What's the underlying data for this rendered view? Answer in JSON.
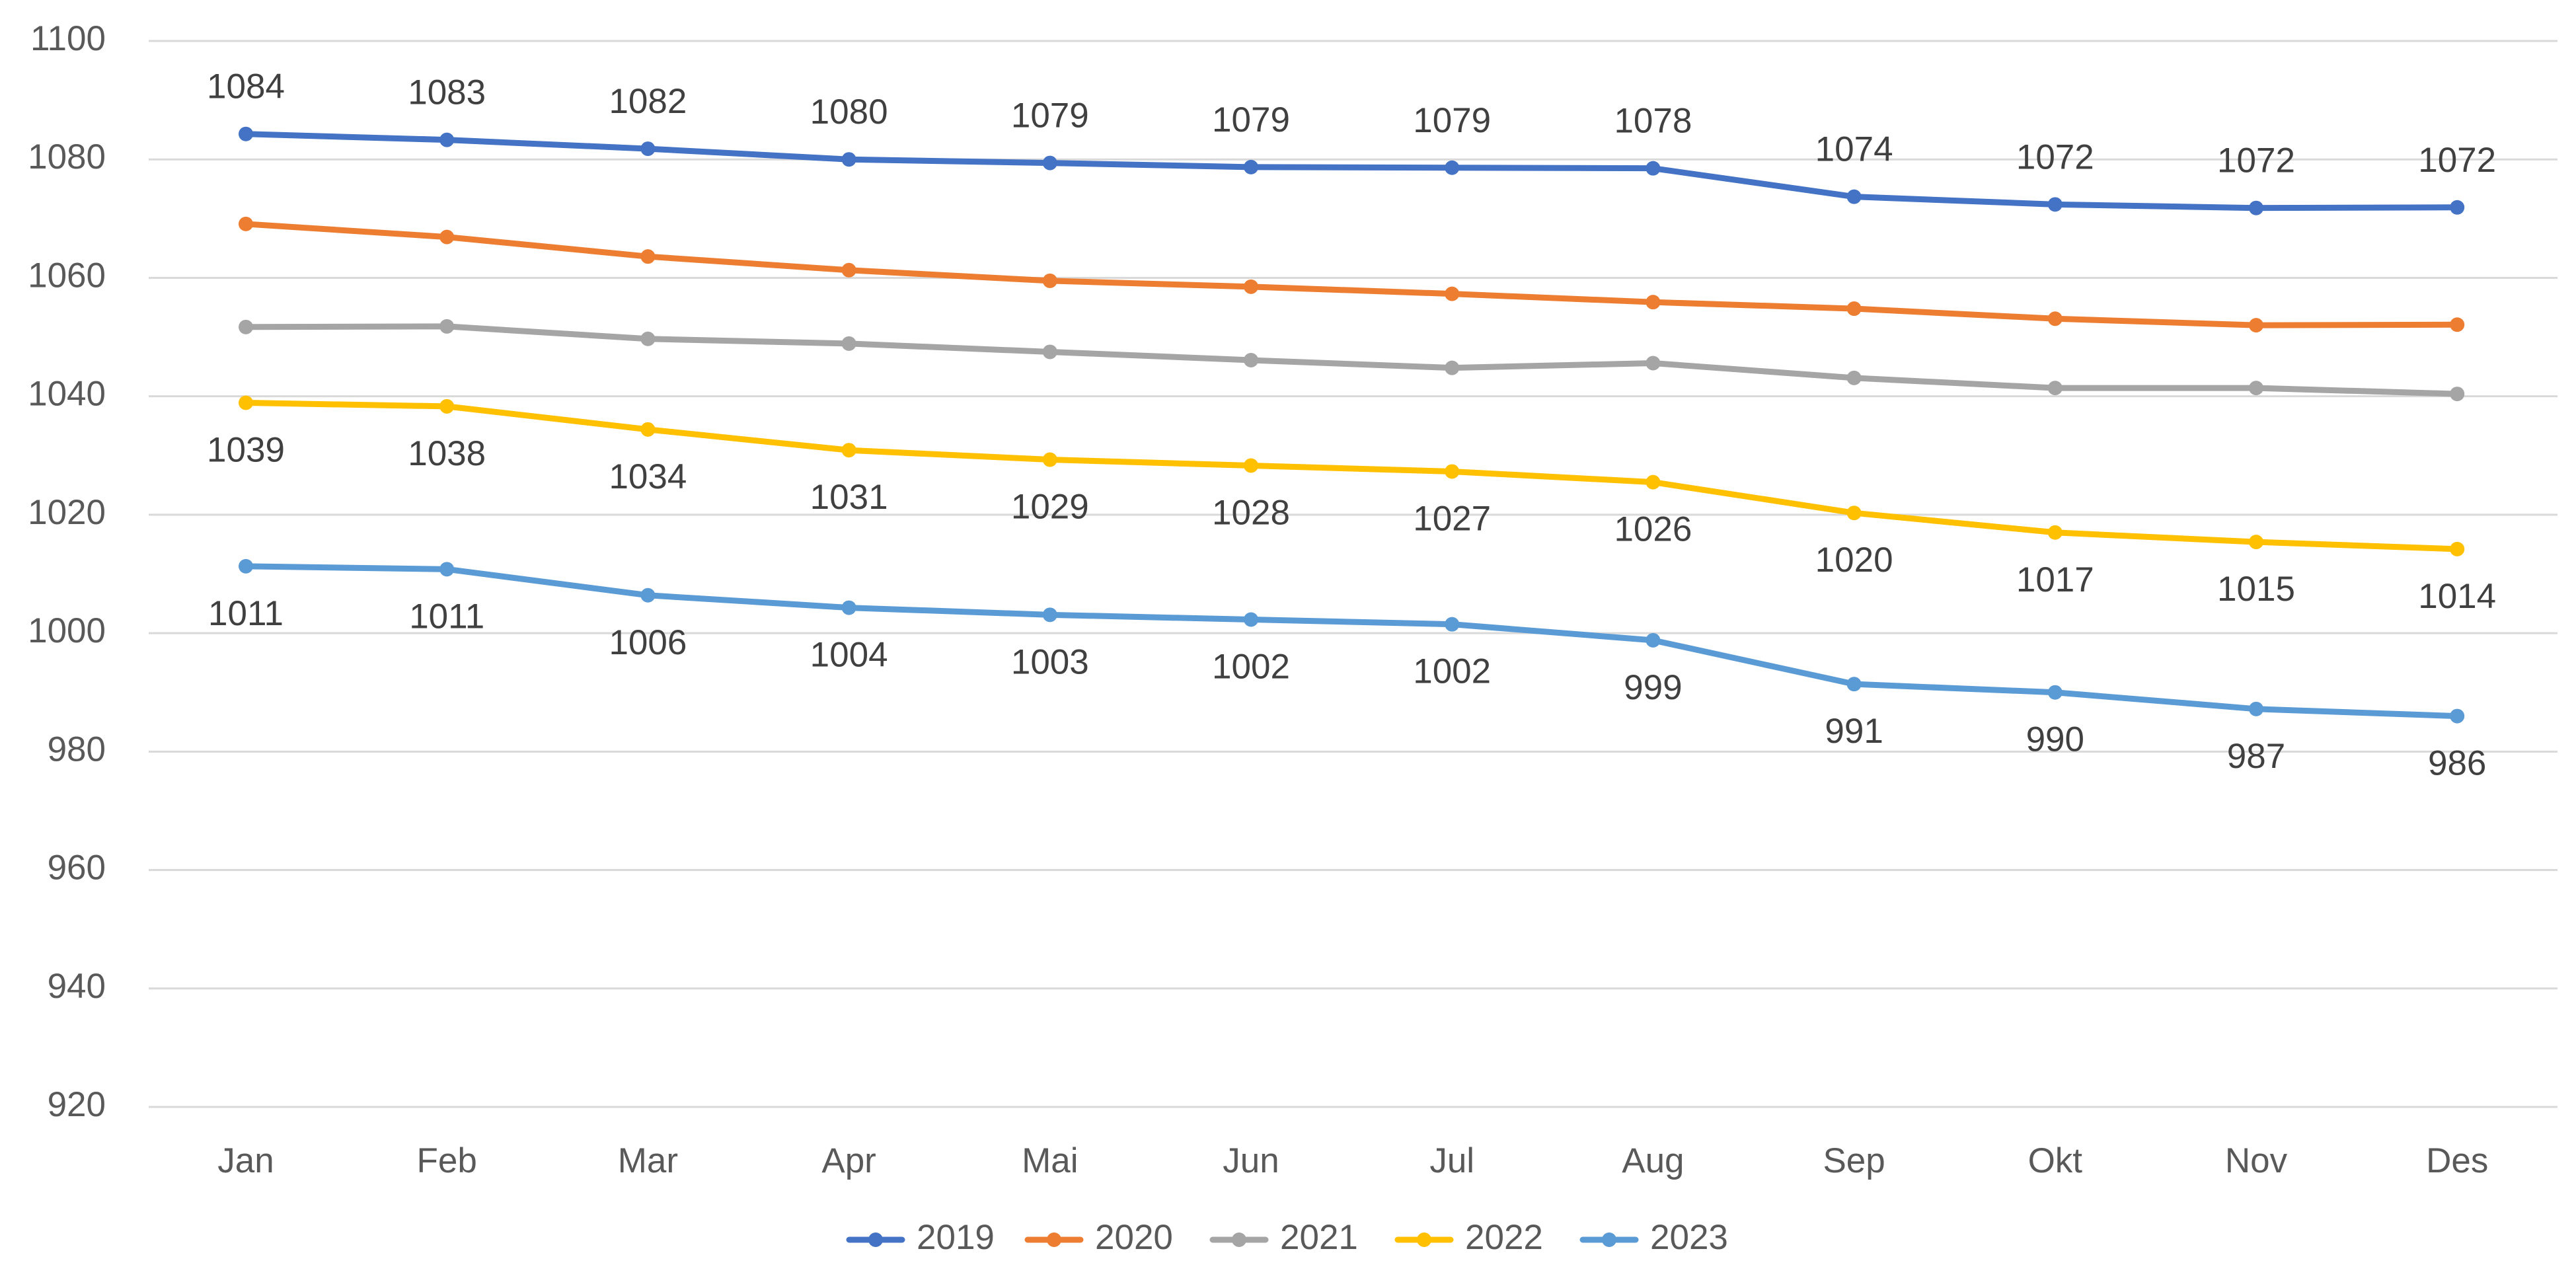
{
  "chart_data": {
    "type": "line",
    "title": "",
    "xlabel": "",
    "ylabel": "",
    "categories": [
      "Jan",
      "Feb",
      "Mar",
      "Apr",
      "Mai",
      "Jun",
      "Jul",
      "Aug",
      "Sep",
      "Okt",
      "Nov",
      "Des"
    ],
    "ylim": [
      920,
      1100
    ],
    "yticks": [
      920,
      940,
      960,
      980,
      1000,
      1020,
      1040,
      1060,
      1080,
      1100
    ],
    "grid": true,
    "legend_position": "bottom",
    "series": [
      {
        "name": "2019",
        "color": "#4472C4",
        "values": [
          1084.3,
          1083.3,
          1081.8,
          1080.0,
          1079.4,
          1078.7,
          1078.6,
          1078.5,
          1073.7,
          1072.4,
          1071.8,
          1071.9
        ],
        "labels": [
          "1084",
          "1083",
          "1082",
          "1080",
          "1079",
          "1079",
          "1079",
          "1078",
          "1074",
          "1072",
          "1072",
          "1072"
        ],
        "label_position": "above"
      },
      {
        "name": "2020",
        "color": "#ED7D31",
        "values": [
          1069.1,
          1066.9,
          1063.6,
          1061.3,
          1059.5,
          1058.5,
          1057.3,
          1055.9,
          1054.8,
          1053.1,
          1052.0,
          1052.1
        ],
        "labels": null,
        "label_position": "none"
      },
      {
        "name": "2021",
        "color": "#A5A5A5",
        "values": [
          1051.7,
          1051.8,
          1049.7,
          1048.9,
          1047.5,
          1046.1,
          1044.8,
          1045.6,
          1043.1,
          1041.4,
          1041.4,
          1040.4
        ],
        "labels": null,
        "label_position": "none"
      },
      {
        "name": "2022",
        "color": "#FFC000",
        "values": [
          1038.9,
          1038.3,
          1034.4,
          1030.9,
          1029.3,
          1028.3,
          1027.3,
          1025.5,
          1020.3,
          1017.0,
          1015.4,
          1014.2
        ],
        "labels": [
          "1039",
          "1038",
          "1034",
          "1031",
          "1029",
          "1028",
          "1027",
          "1026",
          "1020",
          "1017",
          "1015",
          "1014"
        ],
        "label_position": "below"
      },
      {
        "name": "2023",
        "color": "#5B9BD5",
        "values": [
          1011.3,
          1010.8,
          1006.4,
          1004.3,
          1003.1,
          1002.3,
          1001.5,
          998.8,
          991.4,
          990.0,
          987.2,
          986.0
        ],
        "labels": [
          "1011",
          "1011",
          "1006",
          "1004",
          "1003",
          "1002",
          "1002",
          "999",
          "991",
          "990",
          "987",
          "986"
        ],
        "label_position": "below"
      }
    ]
  }
}
